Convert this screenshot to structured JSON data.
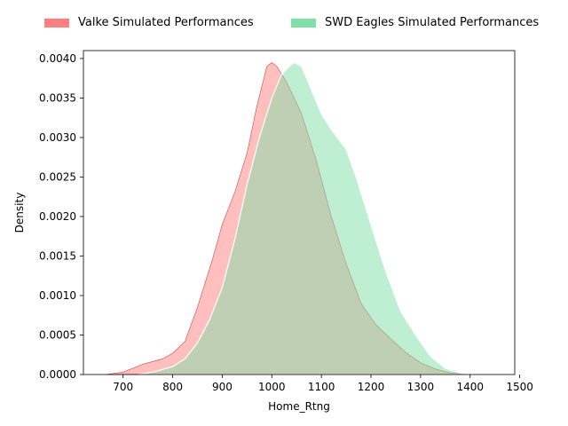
{
  "chart_data": {
    "type": "area",
    "xlabel": "Home_Rtng",
    "ylabel": "Density",
    "xlim": [
      620,
      1490
    ],
    "ylim": [
      0,
      0.0041
    ],
    "xticks": [
      700,
      800,
      900,
      1000,
      1100,
      1200,
      1300,
      1400,
      1500
    ],
    "xtick_labels": [
      "700",
      "800",
      "900",
      "1000",
      "1100",
      "1200",
      "1300",
      "1400",
      "1500"
    ],
    "yticks": [
      0,
      0.0005,
      0.001,
      0.0015,
      0.002,
      0.0025,
      0.003,
      0.0035,
      0.004
    ],
    "ytick_labels": [
      "0.0000",
      "0.0005",
      "0.0010",
      "0.0015",
      "0.0020",
      "0.0025",
      "0.0030",
      "0.0035",
      "0.0040"
    ],
    "legend_position": "top",
    "grid": false,
    "series": [
      {
        "name": "Valke Simulated Performances",
        "color": "#ff7f7f",
        "x": [
          665,
          700,
          740,
          780,
          800,
          825,
          850,
          880,
          900,
          925,
          950,
          970,
          990,
          1000,
          1010,
          1030,
          1060,
          1090,
          1120,
          1150,
          1180,
          1210,
          1240,
          1270,
          1300,
          1330,
          1360,
          1390
        ],
        "y": [
          0,
          3e-05,
          0.00013,
          0.0002,
          0.00027,
          0.00042,
          0.00085,
          0.00145,
          0.0019,
          0.0023,
          0.0028,
          0.0034,
          0.0039,
          0.00395,
          0.0039,
          0.0037,
          0.0033,
          0.0027,
          0.002,
          0.0014,
          0.0009,
          0.00063,
          0.00045,
          0.00028,
          0.00015,
          7e-05,
          2e-05,
          0
        ]
      },
      {
        "name": "SWD Eagles Simulated Performances",
        "color": "#7fe0a8",
        "x": [
          730,
          760,
          800,
          825,
          850,
          875,
          900,
          925,
          950,
          975,
          1000,
          1020,
          1035,
          1045,
          1060,
          1080,
          1100,
          1120,
          1150,
          1170,
          1200,
          1230,
          1260,
          1290,
          1320,
          1350,
          1380,
          1420
        ],
        "y": [
          0,
          3e-05,
          0.0001,
          0.0002,
          0.0004,
          0.0007,
          0.0011,
          0.0017,
          0.0024,
          0.003,
          0.0035,
          0.0038,
          0.0039,
          0.00395,
          0.0039,
          0.0036,
          0.0033,
          0.0031,
          0.00285,
          0.0025,
          0.0019,
          0.0013,
          0.0008,
          0.0005,
          0.00023,
          8e-05,
          2e-05,
          0
        ]
      }
    ]
  }
}
